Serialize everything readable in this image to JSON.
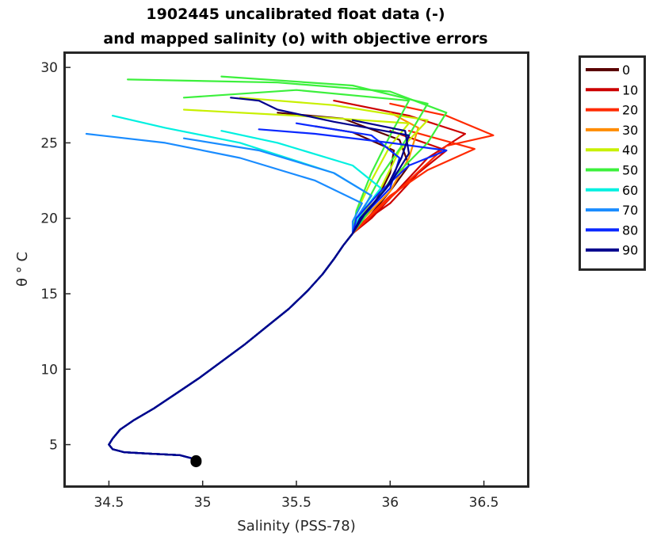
{
  "chart_data": {
    "type": "line",
    "title_lines": [
      "1902445 uncalibrated float data (-)",
      "and mapped salinity (o) with objective errors"
    ],
    "xlabel": "Salinity (PSS-78)",
    "ylabel": "θ ° C",
    "xlim": [
      34.27,
      36.73
    ],
    "ylim": [
      2.3,
      30.9
    ],
    "xticks": [
      34.5,
      35,
      35.5,
      36,
      36.5
    ],
    "xtick_labels": [
      "34.5",
      "35",
      "35.5",
      "36",
      "36.5"
    ],
    "yticks": [
      5,
      10,
      15,
      20,
      25,
      30
    ],
    "ytick_labels": [
      "5",
      "10",
      "15",
      "20",
      "25",
      "30"
    ],
    "grid": false,
    "legend_position": "outside-right",
    "legend": [
      {
        "label": "0",
        "color": "#5a0000"
      },
      {
        "label": "10",
        "color": "#cc0000"
      },
      {
        "label": "20",
        "color": "#ff2a00"
      },
      {
        "label": "30",
        "color": "#ff8c00"
      },
      {
        "label": "40",
        "color": "#c8f000"
      },
      {
        "label": "50",
        "color": "#3cf03c"
      },
      {
        "label": "60",
        "color": "#00f0e0"
      },
      {
        "label": "70",
        "color": "#1a8cff"
      },
      {
        "label": "80",
        "color": "#0a28ff"
      },
      {
        "label": "90",
        "color": "#00008c"
      }
    ],
    "series_common_deep": [
      [
        34.97,
        4.0
      ],
      [
        34.88,
        4.3
      ],
      [
        34.72,
        4.4
      ],
      [
        34.58,
        4.5
      ],
      [
        34.52,
        4.7
      ],
      [
        34.5,
        5.0
      ],
      [
        34.52,
        5.4
      ],
      [
        34.56,
        6.0
      ],
      [
        34.63,
        6.6
      ],
      [
        34.74,
        7.4
      ],
      [
        34.86,
        8.4
      ],
      [
        34.98,
        9.4
      ],
      [
        35.1,
        10.5
      ],
      [
        35.22,
        11.6
      ],
      [
        35.34,
        12.8
      ],
      [
        35.46,
        14.0
      ],
      [
        35.56,
        15.2
      ],
      [
        35.64,
        16.3
      ],
      [
        35.7,
        17.3
      ],
      [
        35.75,
        18.2
      ],
      [
        35.8,
        19.0
      ]
    ],
    "series_upper": [
      {
        "group": 0,
        "points": [
          [
            35.86,
            20.0
          ],
          [
            35.94,
            21.5
          ],
          [
            36.0,
            23.0
          ],
          [
            36.02,
            24.5
          ],
          [
            35.8,
            25.7
          ],
          [
            35.6,
            26.1
          ]
        ]
      },
      {
        "group": 0,
        "points": [
          [
            35.88,
            20.0
          ],
          [
            36.0,
            21.8
          ],
          [
            36.1,
            23.5
          ],
          [
            36.05,
            25.2
          ],
          [
            35.75,
            26.6
          ],
          [
            35.4,
            27.0
          ]
        ]
      },
      {
        "group": 1,
        "points": [
          [
            35.9,
            20.0
          ],
          [
            36.05,
            22.0
          ],
          [
            36.2,
            24.0
          ],
          [
            36.4,
            25.6
          ],
          [
            36.1,
            26.8
          ],
          [
            35.7,
            27.8
          ]
        ]
      },
      {
        "group": 1,
        "points": [
          [
            35.84,
            19.6
          ],
          [
            36.0,
            21.0
          ],
          [
            36.15,
            23.0
          ],
          [
            36.3,
            24.5
          ],
          [
            36.0,
            25.8
          ]
        ]
      },
      {
        "group": 2,
        "points": [
          [
            35.9,
            20.2
          ],
          [
            36.1,
            22.5
          ],
          [
            36.3,
            24.8
          ],
          [
            36.55,
            25.5
          ],
          [
            36.3,
            26.8
          ],
          [
            36.0,
            27.6
          ]
        ]
      },
      {
        "group": 2,
        "points": [
          [
            35.86,
            19.8
          ],
          [
            36.0,
            21.5
          ],
          [
            36.2,
            23.2
          ],
          [
            36.45,
            24.6
          ],
          [
            36.1,
            25.8
          ]
        ]
      },
      {
        "group": 3,
        "points": [
          [
            35.86,
            20.0
          ],
          [
            36.0,
            21.8
          ],
          [
            36.1,
            24.0
          ],
          [
            36.15,
            26.0
          ],
          [
            36.0,
            27.0
          ]
        ]
      },
      {
        "group": 4,
        "points": [
          [
            35.84,
            20.0
          ],
          [
            35.95,
            22.0
          ],
          [
            36.05,
            24.5
          ],
          [
            36.2,
            26.5
          ],
          [
            35.7,
            27.5
          ],
          [
            35.2,
            28.0
          ]
        ]
      },
      {
        "group": 4,
        "points": [
          [
            35.82,
            20.4
          ],
          [
            35.9,
            22.5
          ],
          [
            36.0,
            24.8
          ],
          [
            36.1,
            26.3
          ],
          [
            35.5,
            26.8
          ],
          [
            34.9,
            27.2
          ]
        ]
      },
      {
        "group": 5,
        "points": [
          [
            35.86,
            20.0
          ],
          [
            36.0,
            22.5
          ],
          [
            36.2,
            25.0
          ],
          [
            36.3,
            27.0
          ],
          [
            36.0,
            28.4
          ],
          [
            35.4,
            29.0
          ],
          [
            34.6,
            29.2
          ]
        ]
      },
      {
        "group": 5,
        "points": [
          [
            35.84,
            20.2
          ],
          [
            35.95,
            22.8
          ],
          [
            36.1,
            25.5
          ],
          [
            36.2,
            27.6
          ],
          [
            35.8,
            28.8
          ],
          [
            35.1,
            29.4
          ]
        ]
      },
      {
        "group": 5,
        "points": [
          [
            35.82,
            20.5
          ],
          [
            35.9,
            23.0
          ],
          [
            36.0,
            25.5
          ],
          [
            36.1,
            27.8
          ],
          [
            35.5,
            28.5
          ],
          [
            34.9,
            28.0
          ]
        ]
      },
      {
        "group": 6,
        "points": [
          [
            35.82,
            20.0
          ],
          [
            35.9,
            21.5
          ],
          [
            35.7,
            23.0
          ],
          [
            35.2,
            25.0
          ],
          [
            34.8,
            26.0
          ],
          [
            34.52,
            26.8
          ]
        ]
      },
      {
        "group": 6,
        "points": [
          [
            35.84,
            20.2
          ],
          [
            35.95,
            22.0
          ],
          [
            35.8,
            23.5
          ],
          [
            35.4,
            25.0
          ],
          [
            35.1,
            25.8
          ]
        ]
      },
      {
        "group": 7,
        "points": [
          [
            35.8,
            19.8
          ],
          [
            35.85,
            21.0
          ],
          [
            35.6,
            22.5
          ],
          [
            35.2,
            24.0
          ],
          [
            34.8,
            25.0
          ],
          [
            34.38,
            25.6
          ]
        ]
      },
      {
        "group": 7,
        "points": [
          [
            35.82,
            20.0
          ],
          [
            35.9,
            21.5
          ],
          [
            35.7,
            23.0
          ],
          [
            35.3,
            24.5
          ],
          [
            34.9,
            25.3
          ]
        ]
      },
      {
        "group": 8,
        "points": [
          [
            35.82,
            20.0
          ],
          [
            35.95,
            21.8
          ],
          [
            36.1,
            23.5
          ],
          [
            36.3,
            24.5
          ],
          [
            36.0,
            25.0
          ],
          [
            35.6,
            25.6
          ],
          [
            35.3,
            25.9
          ]
        ]
      },
      {
        "group": 8,
        "points": [
          [
            35.86,
            20.2
          ],
          [
            36.0,
            22.0
          ],
          [
            36.05,
            24.0
          ],
          [
            35.9,
            25.5
          ],
          [
            35.5,
            26.3
          ]
        ]
      },
      {
        "group": 9,
        "points": [
          [
            35.84,
            20.0
          ],
          [
            35.98,
            22.0
          ],
          [
            36.06,
            24.0
          ],
          [
            36.1,
            25.5
          ],
          [
            35.7,
            26.4
          ],
          [
            35.4,
            27.2
          ],
          [
            35.3,
            27.8
          ],
          [
            35.15,
            28.0
          ]
        ]
      },
      {
        "group": 9,
        "points": [
          [
            35.86,
            20.2
          ],
          [
            36.0,
            22.3
          ],
          [
            36.1,
            24.3
          ],
          [
            36.08,
            25.8
          ],
          [
            35.8,
            26.5
          ]
        ]
      }
    ],
    "mapped_salinity_cluster": {
      "x": [
        34.96,
        34.97
      ],
      "y": [
        3.5,
        4.3
      ]
    }
  }
}
